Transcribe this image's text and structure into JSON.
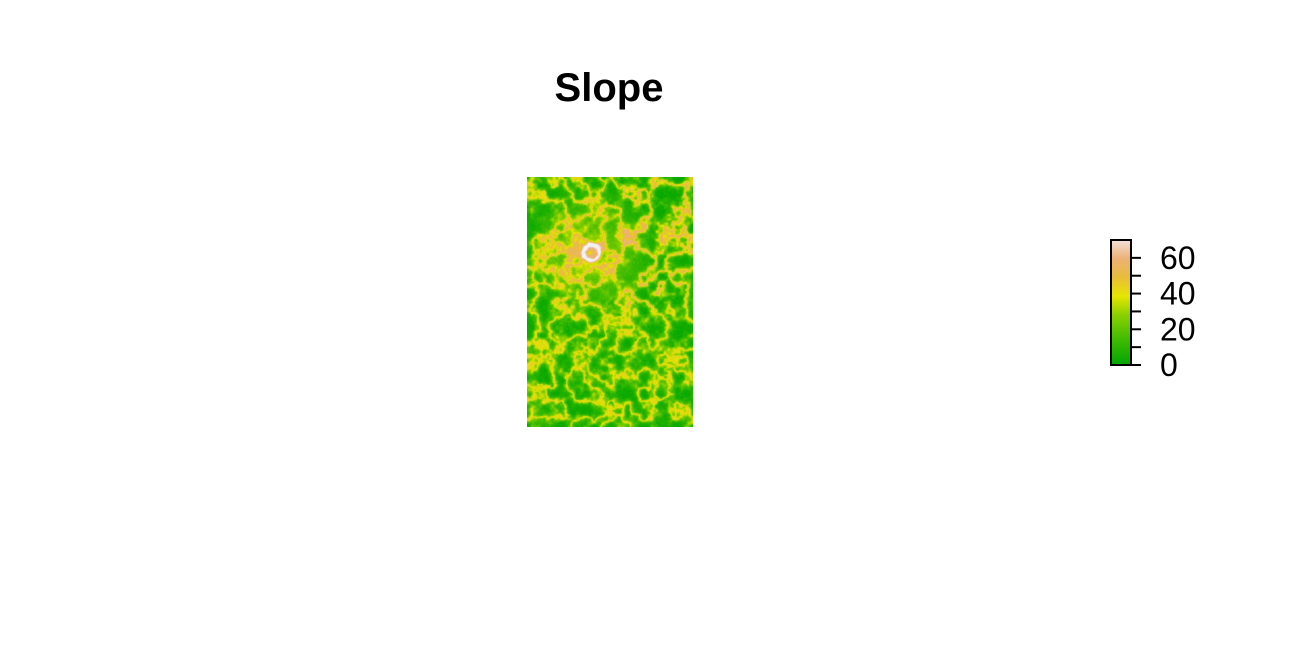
{
  "chart_data": {
    "type": "heatmap",
    "title": "Slope",
    "xlabel": "",
    "ylabel": "",
    "legend": {
      "position": "right",
      "range": [
        0,
        70
      ],
      "ticks": [
        0,
        20,
        40,
        60
      ],
      "tick_labels": [
        "0",
        "20",
        "40",
        "60"
      ],
      "colors": [
        "#00A600",
        "#3EBB00",
        "#8BD000",
        "#E6E600",
        "#E9BD3A",
        "#ECB176",
        "#EFC2B3",
        "#F2F2F2"
      ]
    },
    "raster": {
      "description": "terrain slope values",
      "value_range": [
        0,
        70
      ],
      "features": "volcanic crater with steep rim near upper center; scattered steep ridges and gullies; mostly low slope elsewhere"
    }
  }
}
